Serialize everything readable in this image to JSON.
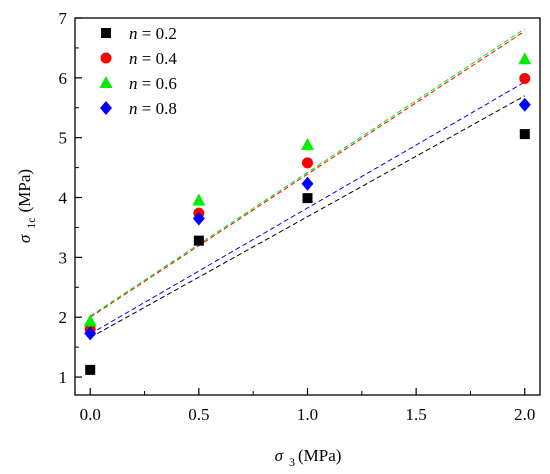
{
  "chart_data": {
    "type": "scatter",
    "xlabel": {
      "symbol": "σ",
      "sub": "3",
      "unit": "(MPa)"
    },
    "ylabel": {
      "symbol": "σ",
      "sub": "1c",
      "unit": "(MPa)"
    },
    "xlim": [
      -0.07,
      2.07
    ],
    "ylim": [
      0.7,
      7.0
    ],
    "xticks": [
      "0.0",
      "0.5",
      "1.0",
      "1.5",
      "2.0"
    ],
    "yticks": [
      "1",
      "2",
      "3",
      "4",
      "5",
      "6",
      "7"
    ],
    "grid": false,
    "legend_position": "top-left",
    "series": [
      {
        "name_italic": "n",
        "name_rest": " = 0.2",
        "marker": "square",
        "color": "#000000",
        "x": [
          0,
          0.5,
          1.0,
          2.0
        ],
        "y": [
          1.12,
          3.28,
          3.99,
          5.06
        ],
        "fit": {
          "x": [
            0,
            2.0
          ],
          "y": [
            1.66,
            5.7
          ]
        }
      },
      {
        "name_italic": "n",
        "name_rest": " = 0.4",
        "marker": "circle",
        "color": "#ff0000",
        "x": [
          0,
          0.5,
          1.0,
          2.0
        ],
        "y": [
          1.8,
          3.74,
          4.58,
          5.99
        ],
        "fit": {
          "x": [
            0,
            2.0
          ],
          "y": [
            2.0,
            6.78
          ]
        }
      },
      {
        "name_italic": "n",
        "name_rest": " = 0.6",
        "marker": "triangle",
        "color": "#00ee00",
        "x": [
          0,
          0.5,
          1.0,
          2.0
        ],
        "y": [
          1.93,
          3.95,
          4.88,
          6.31
        ],
        "fit": {
          "x": [
            0,
            2.0
          ],
          "y": [
            2.02,
            6.82
          ]
        }
      },
      {
        "name_italic": "n",
        "name_rest": " = 0.8",
        "marker": "diamond",
        "color": "#0000ff",
        "x": [
          0,
          0.5,
          1.0,
          2.0
        ],
        "y": [
          1.73,
          3.65,
          4.23,
          5.55
        ],
        "fit": {
          "x": [
            0,
            2.0
          ],
          "y": [
            1.72,
            5.93
          ]
        }
      }
    ]
  }
}
